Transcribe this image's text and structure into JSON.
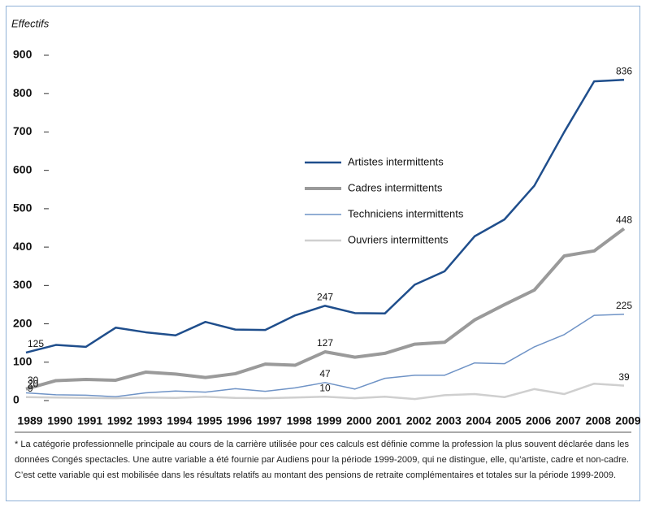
{
  "chart_data": {
    "type": "line",
    "y_label": "Effectifs",
    "x": [
      1989,
      1990,
      1991,
      1992,
      1993,
      1994,
      1995,
      1996,
      1997,
      1998,
      1999,
      2000,
      2001,
      2002,
      2003,
      2004,
      2005,
      2006,
      2007,
      2008,
      2009
    ],
    "xlim": [
      1989,
      2009
    ],
    "ylim": [
      0,
      900
    ],
    "yticks": [
      0,
      100,
      200,
      300,
      400,
      500,
      600,
      700,
      800,
      900
    ],
    "data_labels_at": [
      0,
      10,
      20
    ],
    "series": [
      {
        "name": "Artistes intermittents",
        "color": "#1f4e8c",
        "width": 2.5,
        "values": [
          125,
          145,
          140,
          190,
          178,
          170,
          205,
          185,
          184,
          222,
          247,
          228,
          227,
          302,
          337,
          428,
          472,
          560,
          700,
          832,
          836
        ]
      },
      {
        "name": "Cadres intermittents",
        "color": "#9a9a9a",
        "width": 4,
        "values": [
          30,
          52,
          55,
          53,
          74,
          69,
          60,
          70,
          95,
          92,
          127,
          113,
          123,
          147,
          152,
          210,
          250,
          288,
          377,
          390,
          448
        ]
      },
      {
        "name": "Techniciens intermittents",
        "color": "#6f93c6",
        "width": 1.5,
        "values": [
          20,
          15,
          14,
          10,
          20,
          25,
          22,
          31,
          24,
          33,
          47,
          30,
          58,
          66,
          66,
          98,
          96,
          140,
          172,
          222,
          225
        ]
      },
      {
        "name": "Ouvriers intermittents",
        "color": "#cfcfcf",
        "width": 2.5,
        "values": [
          9,
          8,
          7,
          6,
          8,
          7,
          10,
          7,
          6,
          8,
          10,
          6,
          10,
          4,
          14,
          17,
          9,
          30,
          17,
          44,
          39
        ]
      }
    ],
    "footnote": [
      "* La catégorie professionnelle principale au cours de la carrière utilisée pour ces calculs est définie comme la profession la plus souvent déclarée dans les",
      "données Congés spectacles. Une autre variable a été fournie par Audiens pour la période 1999-2009, qui ne distingue, elle, qu’artiste, cadre et non-cadre.",
      "C’est cette variable qui est mobilisée dans les résultats relatifs au montant des pensions de retraite complémentaires et totales sur la période 1999-2009."
    ]
  }
}
